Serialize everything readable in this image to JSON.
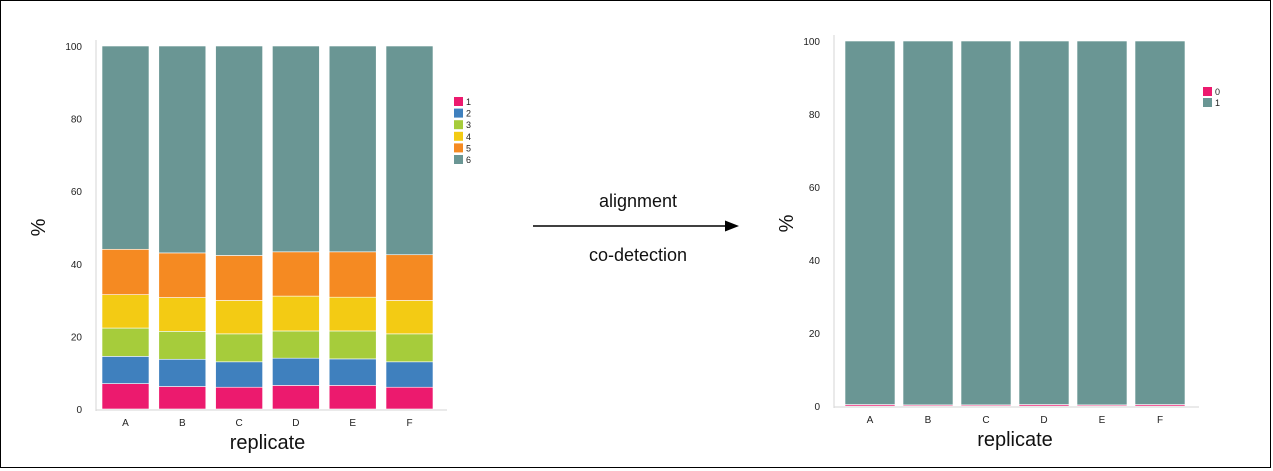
{
  "chart_data": [
    {
      "type": "bar",
      "stacked": true,
      "categories": [
        "A",
        "B",
        "C",
        "D",
        "E",
        "F"
      ],
      "series": [
        {
          "name": "1",
          "color": "#ec1a6e",
          "values": [
            7.0,
            6.2,
            6.0,
            6.5,
            6.5,
            6.0
          ]
        },
        {
          "name": "2",
          "color": "#3f80be",
          "values": [
            7.5,
            7.5,
            7.0,
            7.5,
            7.3,
            7.0
          ]
        },
        {
          "name": "3",
          "color": "#a6cc3b",
          "values": [
            7.8,
            7.7,
            7.7,
            7.5,
            7.7,
            7.7
          ]
        },
        {
          "name": "4",
          "color": "#f3cb14",
          "values": [
            9.2,
            9.3,
            9.2,
            9.6,
            9.3,
            9.2
          ]
        },
        {
          "name": "5",
          "color": "#f58a22",
          "values": [
            12.5,
            12.3,
            12.4,
            12.2,
            12.5,
            12.6
          ]
        },
        {
          "name": "6",
          "color": "#6a9694",
          "values": [
            56.0,
            57.0,
            57.7,
            56.7,
            56.7,
            57.5
          ]
        }
      ],
      "xlabel": "replicate",
      "ylabel": "%",
      "ylim": [
        0,
        100
      ],
      "yticks": [
        0,
        20,
        40,
        60,
        80,
        100
      ],
      "legend_position": "right",
      "grid": false
    },
    {
      "type": "bar",
      "stacked": true,
      "categories": [
        "A",
        "B",
        "C",
        "D",
        "E",
        "F"
      ],
      "series": [
        {
          "name": "0",
          "color": "#ec1a6e",
          "values": [
            0.4,
            0.3,
            0.3,
            0.4,
            0.3,
            0.4
          ]
        },
        {
          "name": "1",
          "color": "#6a9694",
          "values": [
            99.6,
            99.7,
            99.7,
            99.6,
            99.7,
            99.6
          ]
        }
      ],
      "xlabel": "replicate",
      "ylabel": "%",
      "ylim": [
        0,
        100
      ],
      "yticks": [
        0,
        20,
        40,
        60,
        80,
        100
      ],
      "legend_position": "right",
      "grid": false
    }
  ],
  "arrow": {
    "label_top": "alignment",
    "label_bottom": "co-detection"
  }
}
